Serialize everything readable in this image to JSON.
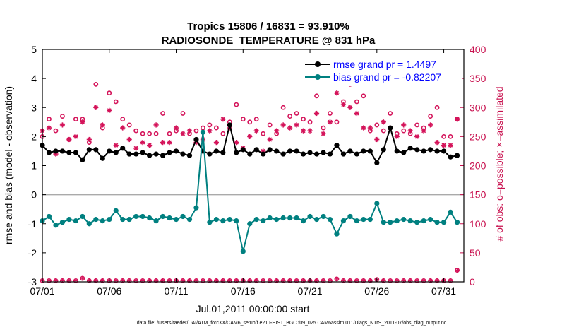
{
  "chart_data": {
    "type": "line",
    "title": "Tropics 15806 / 16831 = 93.910%",
    "subtitle": "RADIOSONDE_TEMPERATURE @ 831 hPa",
    "xlabel": "Jul.01,2011 00:00:00 start",
    "ylabel": "rmse and bias (model - observation)",
    "ylabel_right": "# of obs: o=possible; ×=assimilated",
    "xlim": [
      0,
      31.5
    ],
    "ylim": [
      -3,
      5
    ],
    "ylim_right": [
      0,
      400
    ],
    "x_ticks": [
      0,
      5,
      10,
      15,
      20,
      25,
      30
    ],
    "x_tick_labels": [
      "07/01",
      "07/06",
      "07/11",
      "07/16",
      "07/21",
      "07/26",
      "07/31"
    ],
    "y_ticks": [
      -3,
      -2,
      -1,
      0,
      1,
      2,
      3,
      4,
      5
    ],
    "y_tick_labels": [
      "-3",
      "-2",
      "-1",
      "0",
      "1",
      "2",
      "3",
      "4",
      "5"
    ],
    "y_ticks_right": [
      0,
      50,
      100,
      150,
      200,
      250,
      300,
      350,
      400
    ],
    "y_tick_labels_right": [
      "0",
      "50",
      "100",
      "150",
      "200",
      "250",
      "300",
      "350",
      "400"
    ],
    "zero_line": 0,
    "colors": {
      "rmse": "#000000",
      "bias": "#008080",
      "obs": "#d4145a",
      "right_axis": "#c8104e",
      "legend_text": "#0000ff",
      "zero_line": "#aaaaaa"
    },
    "legend": [
      {
        "key": "rmse",
        "label": "rmse grand pr = 1.4497"
      },
      {
        "key": "bias",
        "label": "bias grand pr = -0.82207"
      }
    ],
    "series": [
      {
        "name": "rmse",
        "axis": "left",
        "x": [
          0,
          0.5,
          1,
          1.5,
          2,
          2.5,
          3,
          3.5,
          4,
          4.5,
          5,
          5.5,
          6,
          6.5,
          7,
          7.5,
          8,
          8.5,
          9,
          9.5,
          10,
          10.5,
          11,
          11.5,
          12,
          12.5,
          13,
          13.5,
          14,
          14.5,
          15,
          15.5,
          16,
          16.5,
          17,
          17.5,
          18,
          18.5,
          19,
          19.5,
          20,
          20.5,
          21,
          21.5,
          22,
          22.5,
          23,
          23.5,
          24,
          24.5,
          25,
          25.5,
          26,
          26.5,
          27,
          27.5,
          28,
          28.5,
          29,
          29.5,
          30,
          30.5,
          31
        ],
        "values": [
          1.7,
          1.45,
          1.5,
          1.5,
          1.45,
          1.45,
          1.2,
          1.55,
          1.55,
          1.25,
          1.5,
          1.45,
          1.6,
          1.4,
          1.4,
          1.45,
          1.35,
          1.4,
          1.35,
          1.45,
          1.5,
          1.4,
          1.35,
          1.9,
          1.5,
          1.4,
          1.5,
          1.45,
          2.4,
          1.45,
          1.55,
          1.4,
          1.55,
          1.4,
          1.55,
          1.5,
          1.4,
          1.5,
          1.5,
          1.4,
          1.45,
          1.4,
          1.45,
          1.4,
          1.7,
          1.4,
          1.5,
          1.4,
          1.5,
          1.5,
          1.1,
          1.55,
          2.3,
          1.5,
          1.45,
          1.6,
          1.55,
          1.5,
          1.55,
          1.5,
          1.5,
          1.3,
          1.35
        ]
      },
      {
        "name": "bias",
        "axis": "left",
        "x": [
          0,
          0.5,
          1,
          1.5,
          2,
          2.5,
          3,
          3.5,
          4,
          4.5,
          5,
          5.5,
          6,
          6.5,
          7,
          7.5,
          8,
          8.5,
          9,
          9.5,
          10,
          10.5,
          11,
          11.5,
          12,
          12.5,
          13,
          13.5,
          14,
          14.5,
          15,
          15.5,
          16,
          16.5,
          17,
          17.5,
          18,
          18.5,
          19,
          19.5,
          20,
          20.5,
          21,
          21.5,
          22,
          22.5,
          23,
          23.5,
          24,
          24.5,
          25,
          25.5,
          26,
          26.5,
          27,
          27.5,
          28,
          28.5,
          29,
          29.5,
          30,
          30.5,
          31
        ],
        "values": [
          -0.9,
          -0.75,
          -1.05,
          -0.95,
          -0.85,
          -0.9,
          -0.75,
          -1.0,
          -0.85,
          -0.9,
          -0.85,
          -0.55,
          -0.85,
          -0.85,
          -0.75,
          -0.75,
          -0.8,
          -0.9,
          -0.75,
          -0.8,
          -0.85,
          -0.75,
          -0.85,
          -0.45,
          2.15,
          -0.95,
          -0.85,
          -0.9,
          -0.85,
          -0.9,
          -1.95,
          -1.0,
          -0.85,
          -0.9,
          -0.8,
          -0.85,
          -0.8,
          -0.8,
          -0.8,
          -0.9,
          -0.75,
          -0.85,
          -0.75,
          -0.85,
          -1.35,
          -0.9,
          -0.75,
          -0.9,
          -0.85,
          -0.85,
          -0.3,
          -0.95,
          -0.95,
          -0.9,
          -0.85,
          -0.9,
          -0.95,
          -0.9,
          -0.85,
          -0.95,
          -0.95,
          -0.6,
          -0.95
        ]
      },
      {
        "name": "possible",
        "axis": "right",
        "marker": "o",
        "x": [
          0,
          0.5,
          1,
          1.5,
          2,
          2.5,
          3,
          3.5,
          4,
          4.5,
          5,
          5.5,
          6,
          6.5,
          7,
          7.5,
          8,
          8.5,
          9,
          9.5,
          10,
          10.5,
          11,
          11.5,
          12,
          12.5,
          13,
          13.5,
          14,
          14.5,
          15,
          15.5,
          16,
          16.5,
          17,
          17.5,
          18,
          18.5,
          19,
          19.5,
          20,
          20.5,
          21,
          21.5,
          22,
          22.5,
          23,
          23.5,
          24,
          24.5,
          25,
          25.5,
          26,
          26.5,
          27,
          27.5,
          28,
          28.5,
          29,
          29.5,
          30,
          30.5,
          31
        ],
        "values": [
          250,
          280,
          260,
          285,
          245,
          280,
          280,
          240,
          340,
          265,
          325,
          310,
          280,
          270,
          260,
          255,
          255,
          255,
          290,
          255,
          260,
          290,
          255,
          260,
          265,
          270,
          265,
          255,
          275,
          305,
          280,
          275,
          280,
          255,
          270,
          255,
          300,
          285,
          290,
          280,
          275,
          320,
          265,
          290,
          275,
          310,
          340,
          310,
          320,
          260,
          270,
          260,
          290,
          255,
          260,
          255,
          270,
          265,
          285,
          300,
          250,
          250,
          280
        ]
      },
      {
        "name": "assimilated",
        "axis": "right",
        "marker": "x",
        "x": [
          0,
          0.5,
          1,
          1.5,
          2,
          2.5,
          3,
          3.5,
          4,
          4.5,
          5,
          5.5,
          6,
          6.5,
          7,
          7.5,
          8,
          8.5,
          9,
          9.5,
          10,
          10.5,
          11,
          11.5,
          12,
          12.5,
          13,
          13.5,
          14,
          14.5,
          15,
          15.5,
          16,
          16.5,
          17,
          17.5,
          18,
          18.5,
          19,
          19.5,
          20,
          20.5,
          21,
          21.5,
          22,
          22.5,
          23,
          23.5,
          24,
          24.5,
          25,
          25.5,
          26,
          26.5,
          27,
          27.5,
          28,
          28.5,
          29,
          29.5,
          30,
          30.5,
          31
        ],
        "values": [
          260,
          265,
          220,
          270,
          245,
          250,
          275,
          245,
          300,
          270,
          295,
          235,
          265,
          245,
          230,
          240,
          235,
          270,
          240,
          240,
          265,
          255,
          260,
          240,
          245,
          260,
          240,
          280,
          265,
          240,
          230,
          250,
          260,
          225,
          245,
          260,
          270,
          265,
          270,
          260,
          260,
          290,
          255,
          275,
          325,
          305,
          300,
          290,
          265,
          265,
          245,
          275,
          265,
          250,
          270,
          260,
          250,
          260,
          270,
          240,
          235,
          235,
          280
        ]
      },
      {
        "name": "possible-bottom",
        "axis": "right",
        "marker": "o",
        "x": [
          0,
          0.5,
          1,
          1.5,
          2,
          2.5,
          3,
          3.5,
          4,
          4.5,
          5,
          5.5,
          6,
          6.5,
          7,
          7.5,
          8,
          8.5,
          9,
          9.5,
          10,
          10.5,
          11,
          11.5,
          12,
          12.5,
          13,
          13.5,
          14,
          14.5,
          15,
          15.5,
          16,
          16.5,
          17,
          17.5,
          18,
          18.5,
          19,
          19.5,
          20,
          20.5,
          21,
          21.5,
          22,
          22.5,
          23,
          23.5,
          24,
          24.5,
          25,
          25.5,
          26,
          26.5,
          27,
          27.5,
          28,
          28.5,
          29,
          29.5,
          30,
          30.5,
          31
        ],
        "values": [
          2,
          2,
          2,
          2,
          2,
          2,
          6,
          2,
          2,
          2,
          2,
          2,
          2,
          2,
          2,
          2,
          2,
          2,
          2,
          2,
          2,
          2,
          2,
          2,
          2,
          2,
          2,
          2,
          2,
          2,
          2,
          2,
          2,
          2,
          2,
          2,
          2,
          2,
          2,
          2,
          2,
          2,
          2,
          2,
          5,
          2,
          2,
          2,
          2,
          2,
          4,
          2,
          2,
          2,
          2,
          2,
          2,
          2,
          2,
          2,
          2,
          2,
          20
        ]
      }
    ]
  },
  "footer": {
    "datafile": "data file: /Users/raeder/DAI/ATM_forcXX/CAM6_setup/f.e21.FHIST_BGC.f09_025.CAM6assim.011/Diags_NTrS_2011-07/obs_diag_output.nc"
  }
}
